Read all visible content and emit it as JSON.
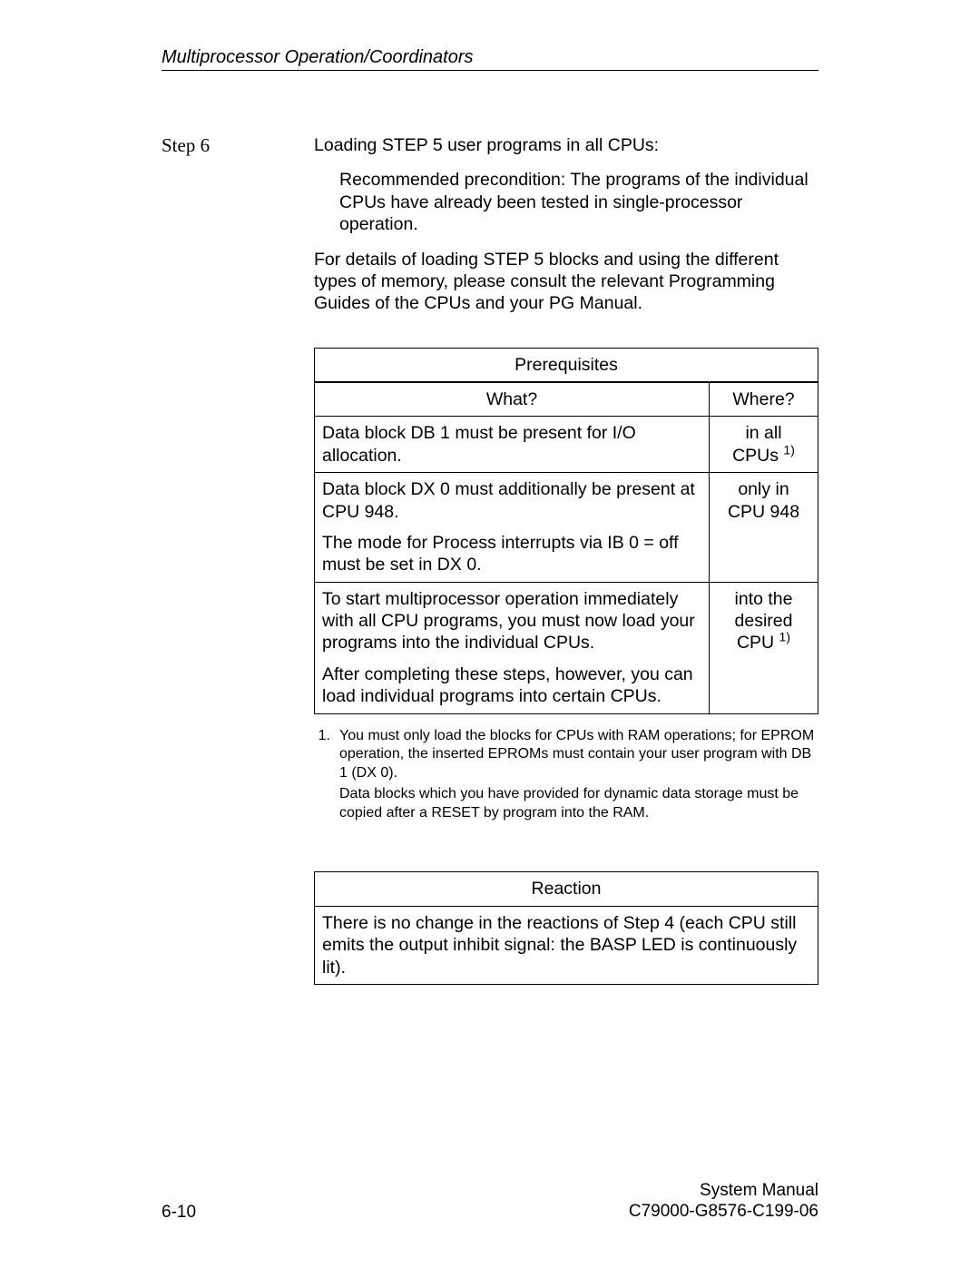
{
  "header": {
    "title": "Multiprocessor Operation/Coordinators"
  },
  "step": {
    "label": "Step 6"
  },
  "intro": {
    "p1": "Loading STEP 5 user programs in all CPUs:",
    "p2": "Recommended precondition: The programs of the individual CPUs have already been tested in single-processor operation.",
    "p3": "For details of loading STEP 5 blocks and using the different types of memory, please consult the relevant Programming Guides of the CPUs and your PG Manual."
  },
  "prereq": {
    "title": "Prerequisites",
    "col1": "What?",
    "col2": "Where?",
    "rows": [
      {
        "what_parts": {
          "a": "Data block DB 1 must",
          "b": " be present for I/O allocation."
        },
        "where": {
          "line1": "in all",
          "line2_pre": "CPUs ",
          "sup": "1)"
        }
      },
      {
        "what_parts": {
          "a": "Data block DX 0 must ",
          "b": "additionally",
          "c": " be present at CPU 948.",
          "d_pre": "The mode for ",
          "d_mid": "Process interrupts via IB 0 = off",
          "d_post": " must be set in DX 0."
        },
        "where": {
          "line1": "only in",
          "line2": "CPU 948"
        }
      },
      {
        "what_parts": {
          "e": "To start multiprocessor operation immediately with all CPU programs, you must now load your programs into the individual CPUs.",
          "f": "After completing these steps, however, you can load individual programs into certain CPUs."
        },
        "where": {
          "line1": "into the",
          "line2": "desired",
          "line3_pre": "CPU ",
          "sup": "1)"
        }
      }
    ]
  },
  "footnote": {
    "num": "1",
    "l1": "You must only load the blocks for CPUs with RAM operations; for EPROM operation, the inserted EPROMs must contain your user program with DB 1 (DX 0).",
    "l2": "Data blocks which you have provided for dynamic data storage must be copied after a RESET by program into the RAM."
  },
  "reaction": {
    "title": "Reaction",
    "body_pre": "There is ",
    "body_mid": "no",
    "body_post": " change in the reactions of Step 4 (each CPU still emits the output inhibit signal: the BASP LED is continuously lit)."
  },
  "footer": {
    "left": "6-10",
    "right1": "System Manual",
    "right2": "C79000-G8576-C199-06"
  }
}
